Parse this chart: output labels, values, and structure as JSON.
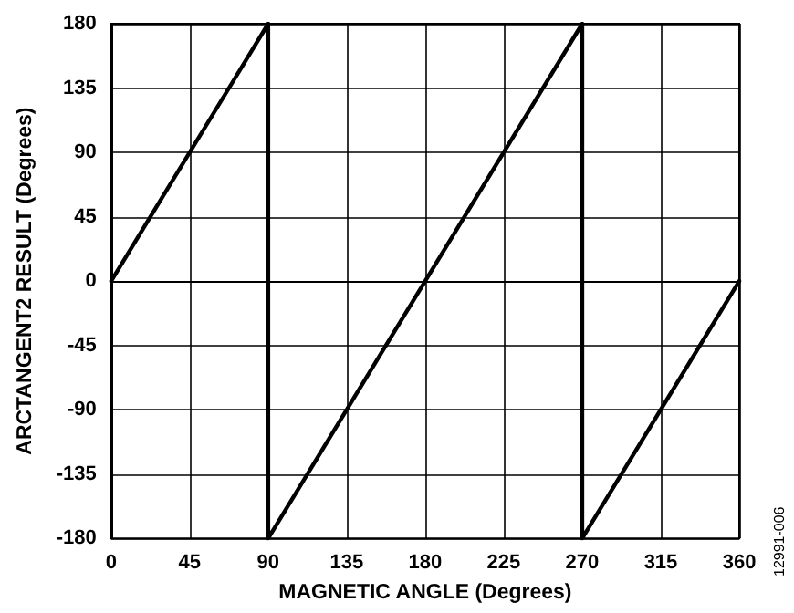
{
  "chart_data": {
    "type": "line",
    "xlabel": "MAGNETIC ANGLE (Degrees)",
    "ylabel": "ARCTANGENT2 RESULT (Degrees)",
    "x": [
      0,
      90,
      90,
      270,
      270,
      360
    ],
    "series": [
      {
        "color": "#000000",
        "values": [
          0,
          180,
          -180,
          180,
          -180,
          0
        ]
      }
    ],
    "xlim": [
      0,
      360
    ],
    "xticks": [
      0,
      45,
      90,
      135,
      180,
      225,
      270,
      315,
      360
    ],
    "ylim": [
      -180,
      180
    ],
    "yticks": [
      -180,
      -135,
      -90,
      -45,
      0,
      45,
      90,
      135,
      180
    ],
    "grid": true,
    "marker": "none",
    "line_style": "solid",
    "annotations": [
      "12991-006"
    ]
  }
}
